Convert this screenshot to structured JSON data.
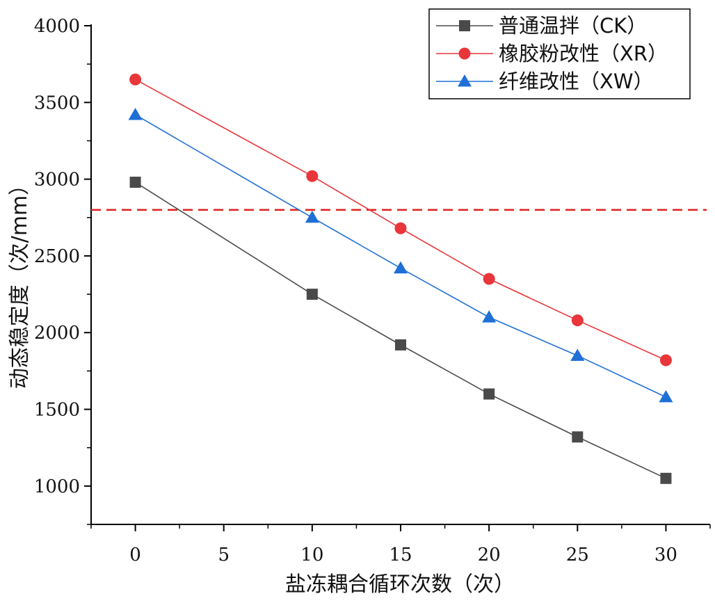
{
  "chart_data": {
    "type": "line",
    "title": "",
    "xlabel": "盐冻耦合循环次数（次）",
    "ylabel": "动态稳定度（次/mm）",
    "xlim": [
      -2.5,
      32.5
    ],
    "ylim": [
      750,
      4000
    ],
    "xticks": [
      0,
      5,
      10,
      15,
      20,
      25,
      30
    ],
    "yticks": [
      1000,
      1500,
      2000,
      2500,
      3000,
      3500,
      4000
    ],
    "x": [
      0,
      10,
      15,
      20,
      25,
      30
    ],
    "series": [
      {
        "name": "普通温拌（CK）",
        "marker": "square",
        "color": "#4a4a4a",
        "values": [
          2980,
          2250,
          1920,
          1600,
          1320,
          1050
        ]
      },
      {
        "name": "橡胶粉改性（XR）",
        "marker": "circle",
        "color": "#e8363a",
        "values": [
          3650,
          3020,
          2680,
          2350,
          2080,
          1820
        ]
      },
      {
        "name": "纤维改性（XW）",
        "marker": "triangle",
        "color": "#1f6fd6",
        "values": [
          3420,
          2750,
          2420,
          2100,
          1850,
          1580
        ]
      }
    ],
    "reference_line": {
      "y": 2800,
      "style": "dashed",
      "color": "#e02020"
    },
    "legend": {
      "position": "top-right"
    },
    "grid": false
  }
}
